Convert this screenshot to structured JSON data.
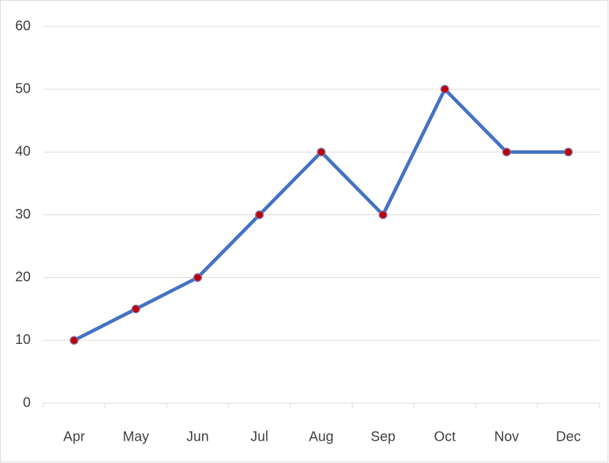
{
  "chart_data": {
    "type": "line",
    "categories": [
      "Apr",
      "May",
      "Jun",
      "Jul",
      "Aug",
      "Sep",
      "Oct",
      "Nov",
      "Dec"
    ],
    "values": [
      10,
      15,
      20,
      30,
      40,
      30,
      50,
      40,
      40
    ],
    "color": "#4472c4",
    "marker_color": "#c00000",
    "ylim": [
      0,
      60
    ],
    "yticks": [
      0,
      10,
      20,
      30,
      40,
      50,
      60
    ],
    "grid": true
  }
}
